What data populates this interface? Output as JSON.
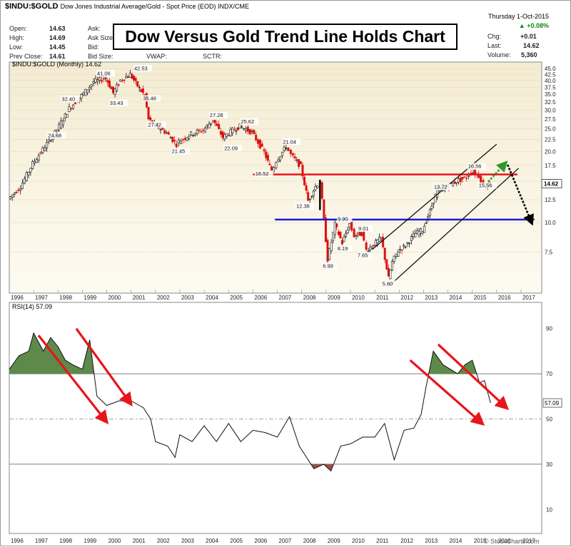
{
  "header": {
    "symbol": "$INDU:$GOLD",
    "description": "Dow Jones Industrial Average/Gold - Spot Price (EOD) INDX/CME",
    "date": "Thursday  1-Oct-2015",
    "change_pct": "+0.08%",
    "stats_left": [
      {
        "label": "Open:",
        "value": "14.63"
      },
      {
        "label": "High:",
        "value": "14.69"
      },
      {
        "label": "Low:",
        "value": "14.45"
      },
      {
        "label": "Prev Close:",
        "value": "14.61"
      }
    ],
    "stats_mid": [
      "Ask:",
      "Ask Size:",
      "Bid:",
      "Bid Size:"
    ],
    "stats_mid2": [
      "",
      "",
      "",
      "VWAP:"
    ],
    "stats_mid3": [
      "",
      "",
      "",
      "SCTR:"
    ],
    "stats_right": [
      {
        "label": "Chg:",
        "value": "+0.01"
      },
      {
        "label": "Last:",
        "value": "14.62"
      },
      {
        "label": "Volume:",
        "value": "5,360"
      }
    ]
  },
  "title": "Dow Versus Gold Trend Line Holds Chart",
  "watermark": "© StockCharts.com",
  "chart_data": [
    {
      "type": "line",
      "legend": "$INDU:$GOLD (Monthly) 14.62",
      "scale": "log",
      "last_value": "14.62",
      "y_ticks": [
        45.0,
        42.5,
        40.0,
        37.5,
        35.0,
        32.5,
        30.0,
        27.5,
        25.0,
        22.5,
        20.0,
        17.5,
        15.0,
        12.5,
        10.0,
        7.5
      ],
      "x_labels": [
        "1996",
        "1997",
        "1998",
        "1999",
        "2000",
        "2001",
        "2002",
        "2003",
        "2004",
        "2005",
        "2006",
        "2007",
        "2008",
        "2009",
        "2010",
        "2011",
        "2012",
        "2013",
        "2014",
        "2015",
        "2016",
        "2017"
      ],
      "x": [
        1996.0,
        1996.5,
        1997.0,
        1997.5,
        1998.0,
        1998.5,
        1999.0,
        1999.5,
        2000.0,
        2000.3,
        2000.6,
        2001.0,
        2001.3,
        2001.6,
        2001.75,
        2002.0,
        2002.5,
        2002.9,
        2003.0,
        2003.5,
        2004.0,
        2004.4,
        2004.8,
        2005.2,
        2005.5,
        2006.0,
        2006.5,
        2006.8,
        2007.0,
        2007.4,
        2007.6,
        2008.0,
        2008.3,
        2008.6,
        2008.8,
        2009.1,
        2009.4,
        2009.7,
        2010.0,
        2010.2,
        2010.5,
        2010.7,
        2011.0,
        2011.3,
        2011.6,
        2011.75,
        2012.0,
        2012.3,
        2012.7,
        2013.0,
        2013.3,
        2013.6,
        2014.0,
        2014.4,
        2014.8,
        2015.0,
        2015.3,
        2015.5,
        2015.75
      ],
      "values": [
        12.6,
        14.2,
        17.8,
        21.0,
        24.8,
        30.5,
        34.5,
        39.5,
        41.06,
        35.5,
        40.2,
        42.53,
        38.0,
        34.5,
        27.42,
        26.0,
        24.0,
        21.45,
        22.1,
        23.8,
        24.7,
        27.28,
        23.0,
        24.6,
        25.62,
        24.1,
        19.9,
        16.52,
        18.3,
        21.04,
        19.4,
        17.3,
        12.38,
        14.2,
        15.0,
        6.99,
        9.8,
        8.19,
        9.9,
        8.8,
        9.01,
        7.65,
        8.1,
        8.6,
        5.8,
        6.8,
        7.6,
        8.0,
        9.0,
        9.3,
        11.2,
        13.72,
        14.2,
        15.0,
        15.56,
        16.56,
        15.8,
        14.3,
        14.62
      ],
      "annotations": [
        "41.06",
        "42.53",
        "32.40",
        "33.43",
        "35.46",
        "24.68",
        "27.42",
        "21.45",
        "27.28",
        "22.09",
        "25.62",
        "21.04",
        "16.52",
        "12.38",
        "9.90",
        "8.19",
        "6.99",
        "9.01",
        "7.65",
        "5.80",
        "13.72",
        "16.56",
        "15.56"
      ],
      "resistance": 16.0,
      "support": 10.3
    },
    {
      "type": "line",
      "legend": "RSI(14) 57.09",
      "last_value": "57.09",
      "y_ticks": [
        90,
        70,
        50,
        30,
        10
      ],
      "x_labels": [
        "1996",
        "1997",
        "1998",
        "1999",
        "2000",
        "2001",
        "2002",
        "2003",
        "2004",
        "2005",
        "2006",
        "2007",
        "2008",
        "2009",
        "2010",
        "2011",
        "2012",
        "2013",
        "2014",
        "2015",
        "2016",
        "2017"
      ],
      "x": [
        1996.0,
        1996.4,
        1996.8,
        1997.0,
        1997.4,
        1997.7,
        1998.0,
        1998.3,
        1998.6,
        1999.0,
        1999.3,
        1999.6,
        2000.0,
        2000.5,
        2001.0,
        2001.5,
        2001.8,
        2002.0,
        2002.5,
        2002.8,
        2003.0,
        2003.5,
        2004.0,
        2004.5,
        2005.0,
        2005.5,
        2006.0,
        2006.5,
        2007.0,
        2007.5,
        2007.9,
        2008.2,
        2008.5,
        2008.9,
        2009.2,
        2009.6,
        2010.0,
        2010.5,
        2011.0,
        2011.4,
        2011.8,
        2012.2,
        2012.6,
        2012.9,
        2013.1,
        2013.4,
        2013.8,
        2014.1,
        2014.4,
        2014.7,
        2015.0,
        2015.3,
        2015.5,
        2015.75
      ],
      "values": [
        72,
        78,
        80,
        88,
        80,
        86,
        82,
        76,
        74,
        72,
        85,
        60,
        56,
        58,
        58,
        55,
        50,
        40,
        38,
        33,
        43,
        40,
        47,
        40,
        48,
        40,
        45,
        44,
        42,
        51,
        38,
        33,
        28,
        30,
        27,
        38,
        39,
        42,
        42,
        48,
        32,
        45,
        46,
        52,
        64,
        80,
        74,
        72,
        70,
        74,
        76,
        66,
        67,
        57.09
      ],
      "overbought": 70,
      "oversold": 30,
      "midline": 50
    }
  ]
}
